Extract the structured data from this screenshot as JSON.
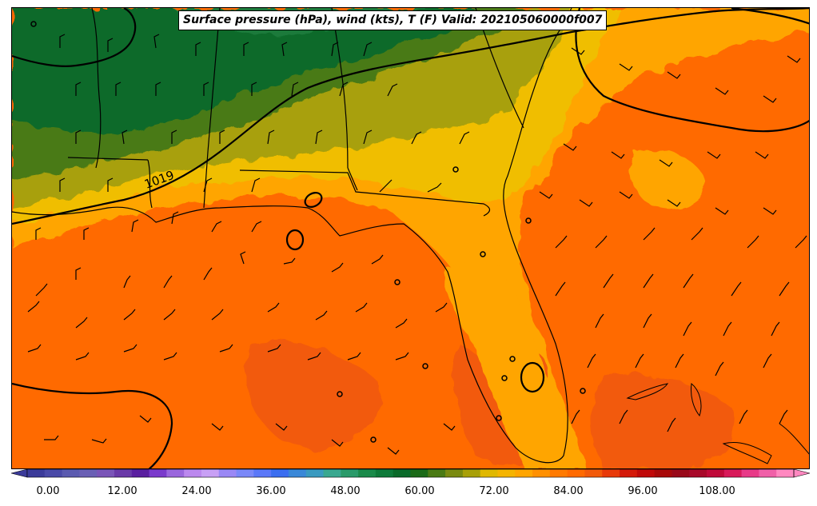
{
  "title": "Surface pressure (hPa), wind (kts), T (F) Valid: 202105060000f007",
  "isobar_label": "1019",
  "colorbar": {
    "ticks": [
      "0.00",
      "12.00",
      "24.00",
      "36.00",
      "48.00",
      "60.00",
      "72.00",
      "84.00",
      "96.00",
      "108.00"
    ],
    "colors": [
      "#3b3b9a",
      "#4a4aa8",
      "#5b5bb0",
      "#6a60b5",
      "#7a55b8",
      "#6a3aa8",
      "#5a1fa0",
      "#7a3acc",
      "#9a66dd",
      "#bb88ee",
      "#c8a0f5",
      "#9a88f5",
      "#7a88f8",
      "#5b78f8",
      "#3b6ef0",
      "#3a88d8",
      "#3a9ac0",
      "#3aa890",
      "#2a9a6a",
      "#1a8a4a",
      "#0e7a3a",
      "#0a6a2a",
      "#1a6a18",
      "#4a7a14",
      "#7a8a10",
      "#a8a008",
      "#e0b800",
      "#f5b400",
      "#ffa500",
      "#ff9000",
      "#ff7a00",
      "#ff6a00",
      "#f25a0a",
      "#e83a0a",
      "#d41a0a",
      "#c00a0a",
      "#a80a0a",
      "#990a1a",
      "#a80a2a",
      "#c00a3a",
      "#d81a5a",
      "#e83a88",
      "#f060a8",
      "#ff88c0"
    ]
  }
}
